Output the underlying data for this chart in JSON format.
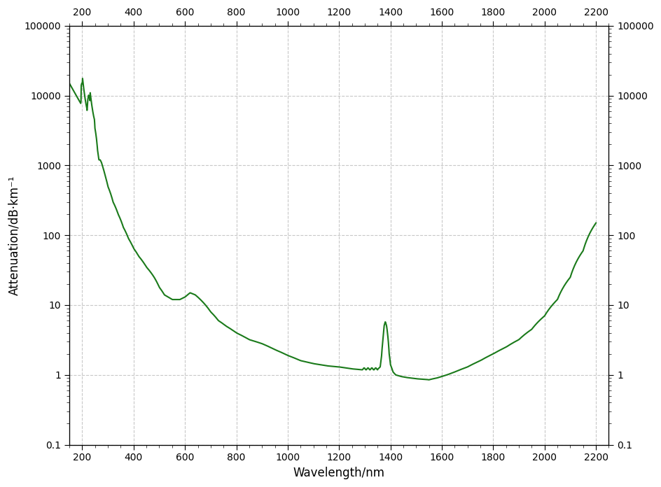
{
  "title": "",
  "xlabel_bottom": "Wavelength/nm",
  "ylabel_left": "Attenuation/dB·km⁻¹",
  "xlim": [
    150,
    2250
  ],
  "ylim": [
    0.1,
    100000
  ],
  "xticks": [
    200,
    400,
    600,
    800,
    1000,
    1200,
    1400,
    1600,
    1800,
    2000,
    2200
  ],
  "yticks": [
    0.1,
    1,
    10,
    100,
    1000,
    10000,
    100000
  ],
  "line_color": "#1a7a1a",
  "line_width": 1.5,
  "background_color": "#ffffff",
  "grid_color": "#c8c8c8",
  "grid_linestyle": "--",
  "grid_linewidth": 0.8
}
